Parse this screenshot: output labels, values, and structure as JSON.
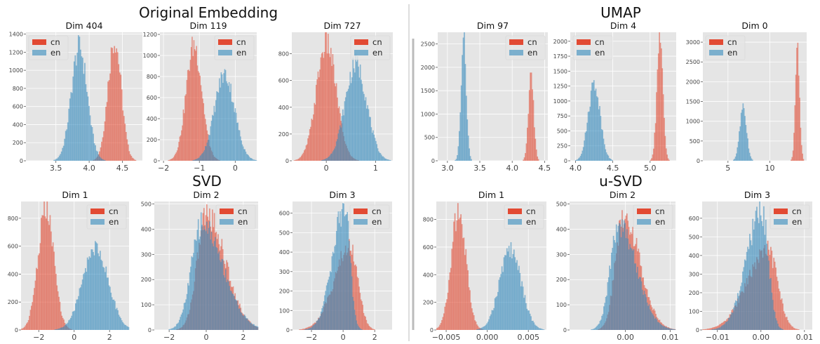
{
  "colors": {
    "cn": "#E24A33",
    "en": "#348ABD",
    "panel_bg": "#E5E5E5",
    "grid": "#FFFFFF"
  },
  "sections": [
    {
      "title": "Original Embedding"
    },
    {
      "title": "UMAP"
    },
    {
      "title": "SVD"
    },
    {
      "title": "u-SVD"
    }
  ],
  "chart_data": [
    {
      "type": "histogram",
      "title": "Dim 404",
      "series": [
        {
          "name": "cn",
          "mu": 4.38,
          "sd": 0.1,
          "peak": 1340
        },
        {
          "name": "en",
          "mu": 3.85,
          "sd": 0.12,
          "peak": 1250
        }
      ],
      "xlim": [
        3.05,
        4.8
      ],
      "ylim": [
        0,
        1420
      ],
      "xticks": [
        "3.5",
        "4.0",
        "4.5"
      ],
      "xtick_values": [
        3.5,
        4.0,
        4.5
      ],
      "yticks": [
        "0",
        "200",
        "400",
        "600",
        "800",
        "1000",
        "1200",
        "1400"
      ],
      "ytick_values": [
        0,
        200,
        400,
        600,
        800,
        1000,
        1200,
        1400
      ],
      "legend": "top-left",
      "grid": true
    },
    {
      "type": "histogram",
      "title": "Dim 119",
      "series": [
        {
          "name": "cn",
          "mu": -1.15,
          "sd": 0.22,
          "peak": 1100
        },
        {
          "name": "en",
          "mu": -0.3,
          "sd": 0.28,
          "peak": 820
        }
      ],
      "xlim": [
        -2.1,
        0.6
      ],
      "ylim": [
        0,
        1220
      ],
      "xticks": [
        "−2",
        "−1",
        "0"
      ],
      "xtick_values": [
        -2,
        -1,
        0
      ],
      "yticks": [
        "0",
        "200",
        "400",
        "600",
        "800",
        "1000",
        "1200"
      ],
      "ytick_values": [
        0,
        200,
        400,
        600,
        800,
        1000,
        1200
      ],
      "legend": "top-right",
      "grid": true
    },
    {
      "type": "histogram",
      "title": "Dim 727",
      "series": [
        {
          "name": "cn",
          "mu": 0.0,
          "sd": 0.2,
          "peak": 880
        },
        {
          "name": "en",
          "mu": 0.6,
          "sd": 0.22,
          "peak": 720
        }
      ],
      "xlim": [
        -0.7,
        1.35
      ],
      "ylim": [
        0,
        960
      ],
      "xticks": [
        "0",
        "1"
      ],
      "xtick_values": [
        0,
        1
      ],
      "yticks": [
        "0",
        "200",
        "400",
        "600",
        "800"
      ],
      "ytick_values": [
        0,
        200,
        400,
        600,
        800
      ],
      "legend": "top-right",
      "grid": true
    },
    {
      "type": "histogram",
      "title": "Dim 97",
      "series": [
        {
          "name": "cn",
          "mu": 4.29,
          "sd": 0.04,
          "peak": 1850
        },
        {
          "name": "en",
          "mu": 3.25,
          "sd": 0.04,
          "peak": 2550
        }
      ],
      "xlim": [
        2.85,
        4.55
      ],
      "ylim": [
        0,
        2750
      ],
      "xticks": [
        "3.0",
        "3.5",
        "4.0",
        "4.5"
      ],
      "xtick_values": [
        3.0,
        3.5,
        4.0,
        4.5
      ],
      "yticks": [
        "0",
        "500",
        "1000",
        "1500",
        "2000",
        "2500"
      ],
      "ytick_values": [
        0,
        500,
        1000,
        1500,
        2000,
        2500
      ],
      "legend": "top-right",
      "grid": true
    },
    {
      "type": "histogram",
      "title": "Dim 4",
      "series": [
        {
          "name": "cn",
          "mu": 5.13,
          "sd": 0.04,
          "peak": 2000
        },
        {
          "name": "en",
          "mu": 4.25,
          "sd": 0.08,
          "peak": 1300
        }
      ],
      "xlim": [
        3.93,
        5.35
      ],
      "ylim": [
        0,
        2150
      ],
      "xticks": [
        "4.0",
        "4.5",
        "5.0"
      ],
      "xtick_values": [
        4.0,
        4.5,
        5.0
      ],
      "yticks": [
        "0",
        "250",
        "500",
        "750",
        "1000",
        "1250",
        "1500",
        "1750",
        "2000"
      ],
      "ytick_values": [
        0,
        250,
        500,
        750,
        1000,
        1250,
        1500,
        1750,
        2000
      ],
      "legend": "top-left",
      "grid": true
    },
    {
      "type": "histogram",
      "title": "Dim 0",
      "series": [
        {
          "name": "cn",
          "mu": 13.3,
          "sd": 0.25,
          "peak": 2700
        },
        {
          "name": "en",
          "mu": 6.8,
          "sd": 0.4,
          "peak": 1400
        }
      ],
      "xlim": [
        2.0,
        14.4
      ],
      "ylim": [
        0,
        3250
      ],
      "xticks": [
        "5",
        "10"
      ],
      "xtick_values": [
        5,
        10
      ],
      "yticks": [
        "0",
        "500",
        "1000",
        "1500",
        "2000",
        "2500",
        "3000"
      ],
      "ytick_values": [
        0,
        500,
        1000,
        1500,
        2000,
        2500,
        3000
      ],
      "legend": "top-left",
      "grid": true
    },
    {
      "type": "histogram",
      "title": "Dim 1",
      "series": [
        {
          "name": "cn",
          "mu": -1.6,
          "sd": 0.45,
          "peak": 860
        },
        {
          "name": "en",
          "mu": 1.2,
          "sd": 0.72,
          "peak": 590
        }
      ],
      "xlim": [
        -3.0,
        3.1
      ],
      "ylim": [
        0,
        920
      ],
      "xticks": [
        "−2",
        "0",
        "2"
      ],
      "xtick_values": [
        -2,
        0,
        2
      ],
      "yticks": [
        "0",
        "200",
        "400",
        "600",
        "800"
      ],
      "ytick_values": [
        0,
        200,
        400,
        600,
        800
      ],
      "legend": "top-right",
      "grid": true
    },
    {
      "type": "histogram",
      "title": "Dim 2",
      "series": [
        {
          "name": "cn",
          "mu": 0.0,
          "sd": 0.75,
          "peak": 460,
          "skew": 0.35
        },
        {
          "name": "en",
          "mu": -0.25,
          "sd": 0.85,
          "peak": 420,
          "skew": 0.35
        }
      ],
      "xlim": [
        -2.8,
        2.8
      ],
      "ylim": [
        0,
        510
      ],
      "xticks": [
        "−2",
        "0",
        "2"
      ],
      "xtick_values": [
        -2,
        0,
        2
      ],
      "yticks": [
        "0",
        "100",
        "200",
        "300",
        "400",
        "500"
      ],
      "ytick_values": [
        0,
        100,
        200,
        300,
        400,
        500
      ],
      "legend": "top-right",
      "grid": true
    },
    {
      "type": "histogram",
      "title": "Dim 3",
      "series": [
        {
          "name": "cn",
          "mu": 0.45,
          "sd": 0.75,
          "peak": 430,
          "skew": -0.35
        },
        {
          "name": "en",
          "mu": 0.1,
          "sd": 0.55,
          "peak": 630,
          "skew": -0.4
        }
      ],
      "xlim": [
        -3.2,
        3.1
      ],
      "ylim": [
        0,
        660
      ],
      "xticks": [
        "−2",
        "0",
        "2"
      ],
      "xtick_values": [
        -2,
        0,
        2
      ],
      "yticks": [
        "0",
        "100",
        "200",
        "300",
        "400",
        "500",
        "600"
      ],
      "ytick_values": [
        0,
        100,
        200,
        300,
        400,
        500,
        600
      ],
      "legend": "top-right",
      "grid": true
    },
    {
      "type": "histogram",
      "title": "Dim 1",
      "series": [
        {
          "name": "cn",
          "mu": -0.0035,
          "sd": 0.0009,
          "peak": 860
        },
        {
          "name": "en",
          "mu": 0.0028,
          "sd": 0.0013,
          "peak": 580
        }
      ],
      "xlim": [
        -0.0062,
        0.0072
      ],
      "ylim": [
        0,
        930
      ],
      "xticks": [
        "−0.005",
        "0.000",
        "0.005"
      ],
      "xtick_values": [
        -0.005,
        0.0,
        0.005
      ],
      "yticks": [
        "0",
        "200",
        "400",
        "600",
        "800"
      ],
      "ytick_values": [
        0,
        200,
        400,
        600,
        800
      ],
      "legend": "top-right",
      "grid": true
    },
    {
      "type": "histogram",
      "title": "Dim 2",
      "series": [
        {
          "name": "cn",
          "mu": -0.0005,
          "sd": 0.0027,
          "peak": 460,
          "skew": 0.35
        },
        {
          "name": "en",
          "mu": -0.0015,
          "sd": 0.0029,
          "peak": 420,
          "skew": 0.35
        }
      ],
      "xlim": [
        -0.0125,
        0.0112
      ],
      "ylim": [
        0,
        510
      ],
      "xticks": [
        "0.00",
        "0.01"
      ],
      "xtick_values": [
        0.0,
        0.01
      ],
      "yticks": [
        "0",
        "100",
        "200",
        "300",
        "400",
        "500"
      ],
      "ytick_values": [
        0,
        100,
        200,
        300,
        400,
        500
      ],
      "legend": "top-right",
      "grid": true
    },
    {
      "type": "histogram",
      "title": "Dim 3",
      "series": [
        {
          "name": "cn",
          "mu": 0.0015,
          "sd": 0.0035,
          "peak": 430,
          "skew": -0.35
        },
        {
          "name": "en",
          "mu": 0.0002,
          "sd": 0.0025,
          "peak": 640,
          "skew": -0.4
        }
      ],
      "xlim": [
        -0.0135,
        0.0118
      ],
      "ylim": [
        0,
        690
      ],
      "xticks": [
        "−0.01",
        "0.00",
        "0.01"
      ],
      "xtick_values": [
        -0.01,
        0.0,
        0.01
      ],
      "yticks": [
        "0",
        "100",
        "200",
        "300",
        "400",
        "500",
        "600"
      ],
      "ytick_values": [
        0,
        100,
        200,
        300,
        400,
        500,
        600
      ],
      "legend": "top-right",
      "grid": true
    }
  ]
}
